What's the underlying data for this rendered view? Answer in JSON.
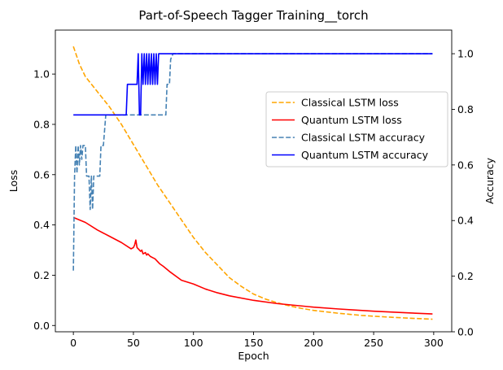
{
  "chart_data": {
    "type": "line",
    "title": "Part-of-Speech Tagger Training__torch",
    "xlabel": "Epoch",
    "ylabel": "Loss",
    "y2label": "Accuracy",
    "xlim": [
      -15,
      315
    ],
    "ylim": [
      -0.025,
      1.175
    ],
    "y2lim": [
      0.0,
      1.085
    ],
    "xticks": [
      0,
      50,
      100,
      150,
      200,
      250,
      300
    ],
    "yticks": [
      0.0,
      0.2,
      0.4,
      0.6,
      0.8,
      1.0
    ],
    "yticklabels": [
      "0.0",
      "0.2",
      "0.4",
      "0.6",
      "0.8",
      "1.0"
    ],
    "y2ticks": [
      0.0,
      0.2,
      0.4,
      0.6,
      0.8,
      1.0
    ],
    "y2ticklabels": [
      "0.0",
      "0.2",
      "0.4",
      "0.6",
      "0.8",
      "1.0"
    ],
    "grid": false,
    "legend_position": "center-right",
    "series": [
      {
        "name": "Classical LSTM loss",
        "axis": "left",
        "color": "#FFA500",
        "dash": "dashed",
        "points": [
          [
            0,
            1.11
          ],
          [
            5,
            1.04
          ],
          [
            10,
            0.99
          ],
          [
            20,
            0.93
          ],
          [
            30,
            0.87
          ],
          [
            40,
            0.8
          ],
          [
            50,
            0.72
          ],
          [
            60,
            0.64
          ],
          [
            70,
            0.56
          ],
          [
            80,
            0.49
          ],
          [
            90,
            0.42
          ],
          [
            100,
            0.35
          ],
          [
            110,
            0.29
          ],
          [
            120,
            0.24
          ],
          [
            130,
            0.19
          ],
          [
            140,
            0.155
          ],
          [
            150,
            0.125
          ],
          [
            160,
            0.105
          ],
          [
            170,
            0.09
          ],
          [
            180,
            0.078
          ],
          [
            190,
            0.068
          ],
          [
            200,
            0.06
          ],
          [
            220,
            0.049
          ],
          [
            240,
            0.04
          ],
          [
            260,
            0.034
          ],
          [
            280,
            0.029
          ],
          [
            299,
            0.025
          ]
        ]
      },
      {
        "name": "Quantum LSTM loss",
        "axis": "left",
        "color": "#FF0000",
        "dash": "solid",
        "points": [
          [
            0,
            0.43
          ],
          [
            10,
            0.41
          ],
          [
            20,
            0.38
          ],
          [
            30,
            0.355
          ],
          [
            40,
            0.33
          ],
          [
            48,
            0.305
          ],
          [
            50,
            0.31
          ],
          [
            51,
            0.32
          ],
          [
            52,
            0.34
          ],
          [
            53,
            0.31
          ],
          [
            54,
            0.305
          ],
          [
            56,
            0.295
          ],
          [
            57,
            0.3
          ],
          [
            58,
            0.285
          ],
          [
            60,
            0.29
          ],
          [
            61,
            0.28
          ],
          [
            62,
            0.285
          ],
          [
            64,
            0.275
          ],
          [
            66,
            0.27
          ],
          [
            68,
            0.265
          ],
          [
            70,
            0.255
          ],
          [
            72,
            0.245
          ],
          [
            75,
            0.235
          ],
          [
            80,
            0.215
          ],
          [
            90,
            0.18
          ],
          [
            100,
            0.165
          ],
          [
            110,
            0.145
          ],
          [
            120,
            0.13
          ],
          [
            130,
            0.118
          ],
          [
            150,
            0.1
          ],
          [
            170,
            0.087
          ],
          [
            200,
            0.073
          ],
          [
            220,
            0.066
          ],
          [
            250,
            0.057
          ],
          [
            280,
            0.05
          ],
          [
            299,
            0.046
          ]
        ]
      },
      {
        "name": "Classical LSTM accuracy",
        "axis": "right",
        "color": "#4682B4",
        "dash": "dashed",
        "points": [
          [
            0,
            0.22
          ],
          [
            1,
            0.56
          ],
          [
            2,
            0.67
          ],
          [
            3,
            0.57
          ],
          [
            4,
            0.67
          ],
          [
            5,
            0.6
          ],
          [
            6,
            0.67
          ],
          [
            7,
            0.62
          ],
          [
            8,
            0.67
          ],
          [
            10,
            0.67
          ],
          [
            11,
            0.56
          ],
          [
            13,
            0.56
          ],
          [
            14,
            0.44
          ],
          [
            15,
            0.56
          ],
          [
            16,
            0.44
          ],
          [
            17,
            0.56
          ],
          [
            22,
            0.56
          ],
          [
            23,
            0.67
          ],
          [
            25,
            0.67
          ],
          [
            27,
            0.78
          ],
          [
            77,
            0.78
          ],
          [
            78,
            0.89
          ],
          [
            80,
            0.89
          ],
          [
            81,
            0.98
          ],
          [
            83,
            1.0
          ],
          [
            299,
            1.0
          ]
        ]
      },
      {
        "name": "Quantum LSTM accuracy",
        "axis": "right",
        "color": "#0000FF",
        "dash": "solid",
        "points": [
          [
            0,
            0.78
          ],
          [
            44,
            0.78
          ],
          [
            45,
            0.89
          ],
          [
            53,
            0.89
          ],
          [
            54,
            1.0
          ],
          [
            55,
            0.78
          ],
          [
            56,
            0.78
          ],
          [
            57,
            1.0
          ],
          [
            58,
            0.89
          ],
          [
            59,
            1.0
          ],
          [
            60,
            0.89
          ],
          [
            61,
            1.0
          ],
          [
            62,
            0.89
          ],
          [
            63,
            1.0
          ],
          [
            64,
            0.89
          ],
          [
            65,
            1.0
          ],
          [
            66,
            0.89
          ],
          [
            67,
            1.0
          ],
          [
            68,
            0.89
          ],
          [
            69,
            1.0
          ],
          [
            70,
            0.89
          ],
          [
            71,
            1.0
          ],
          [
            299,
            1.0
          ]
        ]
      }
    ]
  }
}
